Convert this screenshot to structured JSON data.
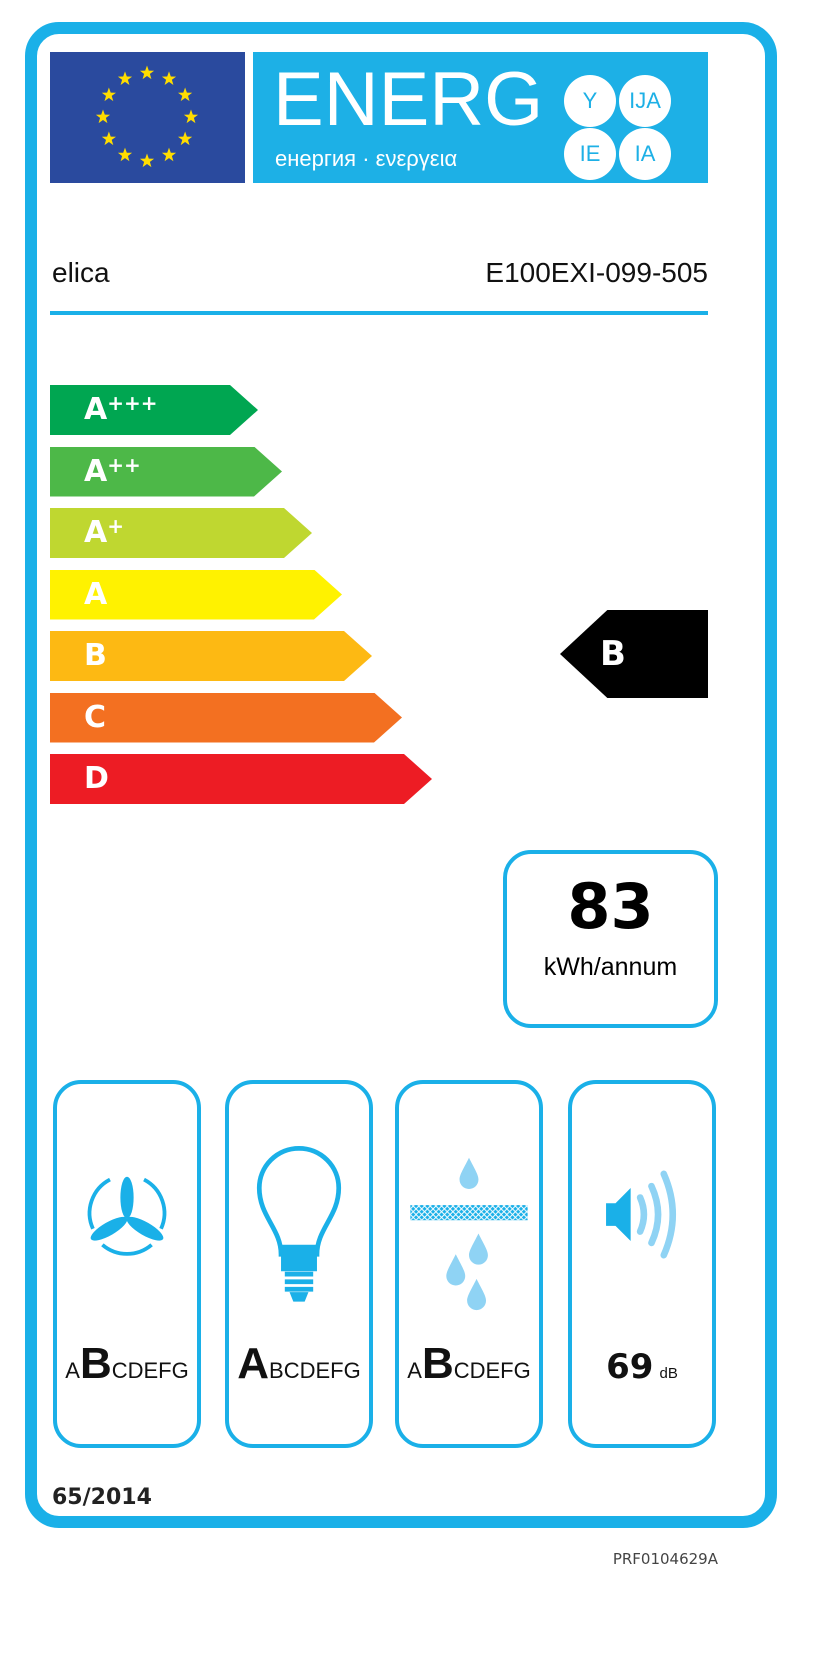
{
  "header": {
    "title": "ENERG",
    "subtitle": "енергия · ενεργεια",
    "suffixes": [
      "Y",
      "IJA",
      "IE",
      "IA"
    ],
    "flag": "eu-flag"
  },
  "supplier": "elica",
  "model": "E100EXI-099-505",
  "scale": [
    {
      "label": "A",
      "plus": "+++",
      "color": "#00a651"
    },
    {
      "label": "A",
      "plus": "++",
      "color": "#4db848"
    },
    {
      "label": "A",
      "plus": "+",
      "color": "#bfd730"
    },
    {
      "label": "A",
      "plus": "",
      "color": "#fff200"
    },
    {
      "label": "B",
      "plus": "",
      "color": "#fdb913"
    },
    {
      "label": "C",
      "plus": "",
      "color": "#f37021"
    },
    {
      "label": "D",
      "plus": "",
      "color": "#ed1c24"
    }
  ],
  "energy_class": "B",
  "consumption": {
    "value": "83",
    "unit": "kWh/annum"
  },
  "pictograms": [
    {
      "icon": "fan-icon",
      "before": "A",
      "selected": "B",
      "after": "CDEFG"
    },
    {
      "icon": "light-bulb-icon",
      "before": "",
      "selected": "A",
      "after": "BCDEFG"
    },
    {
      "icon": "grease-filter-icon",
      "before": "A",
      "selected": "B",
      "after": "CDEFG"
    },
    {
      "icon": "speaker-noise-icon",
      "value": "69",
      "unit": "dB"
    }
  ],
  "regulation": "65/2014",
  "code": "PRF0104629A",
  "colors": {
    "frame": "#1ab0e8",
    "flag": "#2a4a9e",
    "stars": "#ffdd00"
  }
}
